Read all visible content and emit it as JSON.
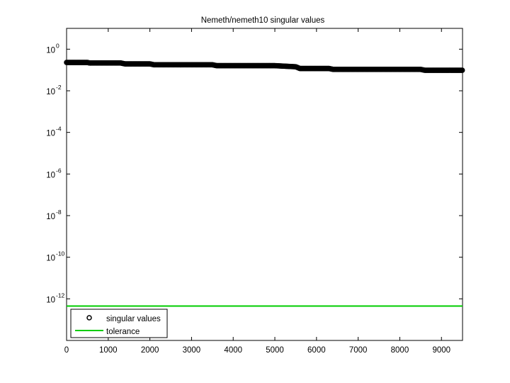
{
  "chart_data": {
    "type": "scatter",
    "title": "Nemeth/nemeth10 singular values",
    "xlabel": "",
    "ylabel": "",
    "x_scale": "linear",
    "y_scale": "log",
    "xlim": [
      0,
      9506
    ],
    "ylim_exponent": [
      -14,
      1
    ],
    "x_ticks": [
      0,
      1000,
      2000,
      3000,
      4000,
      5000,
      6000,
      7000,
      8000,
      9000
    ],
    "x_tick_labels": [
      "0",
      "1000",
      "2000",
      "3000",
      "4000",
      "5000",
      "6000",
      "7000",
      "8000",
      "9000"
    ],
    "y_tick_exponents": [
      0,
      -2,
      -4,
      -6,
      -8,
      -10,
      -12
    ],
    "y_tick_base": "10",
    "y_tick_labels": [
      "0",
      "-2",
      "-4",
      "-6",
      "-8",
      "-10",
      "-12"
    ],
    "grid": false,
    "legend_location": "bottom-left",
    "series": [
      {
        "name": "singular values",
        "marker": "circle",
        "color": "#000000",
        "x": [
          0,
          500,
          550,
          1300,
          1400,
          2000,
          2100,
          3500,
          3600,
          5000,
          5500,
          5600,
          6300,
          6400,
          8500,
          8600,
          9506
        ],
        "y": [
          0.2307,
          0.2307,
          0.2166,
          0.2166,
          0.1963,
          0.1963,
          0.1778,
          0.1778,
          0.161,
          0.161,
          0.1429,
          0.1183,
          0.1183,
          0.1072,
          0.1072,
          0.097,
          0.097
        ]
      },
      {
        "name": "tolerance",
        "marker": "line",
        "color": "#00cc00",
        "x": [
          0,
          9506
        ],
        "y": [
          4.5e-13,
          4.5e-13
        ]
      }
    ]
  }
}
